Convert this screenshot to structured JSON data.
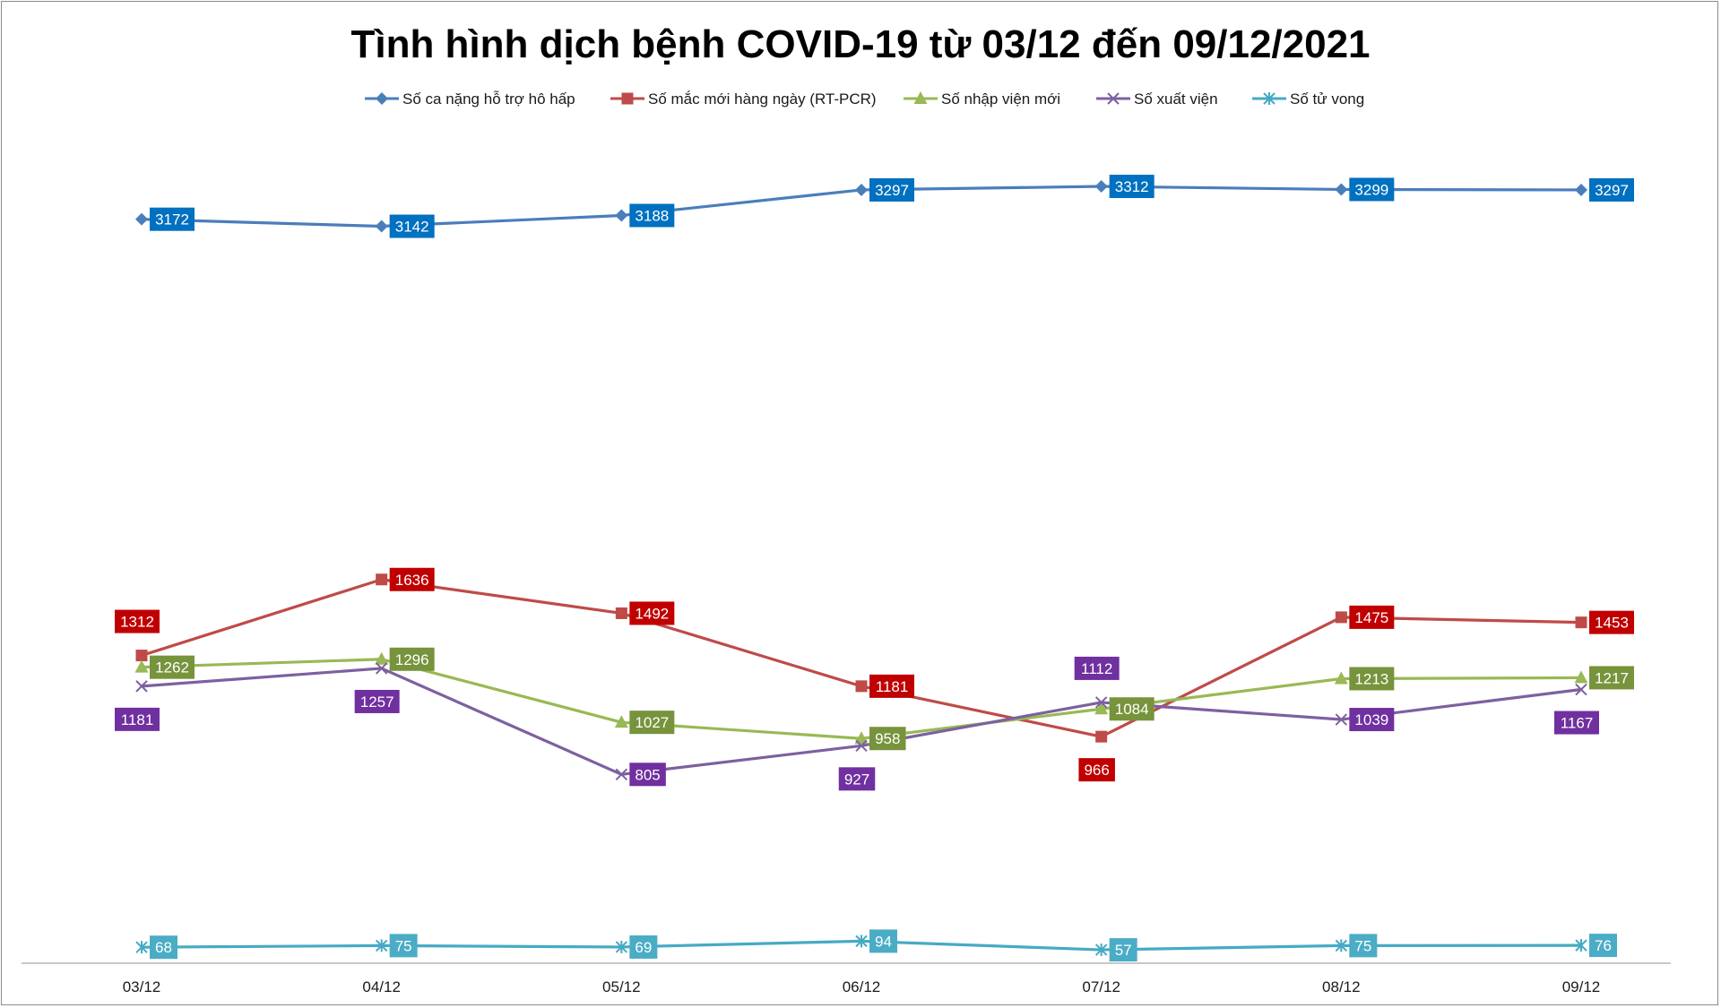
{
  "chart_data": {
    "type": "line",
    "title": "Tình hình dịch bệnh COVID-19 từ 03/12 đến 09/12/2021",
    "xlabel": "",
    "ylabel": "",
    "categories": [
      "03/12",
      "04/12",
      "05/12",
      "06/12",
      "07/12",
      "08/12",
      "09/12"
    ],
    "ylim": [
      0,
      3400
    ],
    "grid": false,
    "legend_position": "top",
    "series": [
      {
        "name": "Số ca nặng hỗ trợ hô hấp",
        "marker": "diamond",
        "line_color": "#4a7ebb",
        "label_color": "#0070c0",
        "values": [
          3172,
          3142,
          3188,
          3297,
          3312,
          3299,
          3297
        ]
      },
      {
        "name": "Số mắc mới hàng ngày (RT-PCR)",
        "marker": "square",
        "line_color": "#be4b48",
        "label_color": "#c00000",
        "values": [
          1312,
          1636,
          1492,
          1181,
          966,
          1475,
          1453
        ]
      },
      {
        "name": "Số nhập viện mới",
        "marker": "triangle",
        "line_color": "#98b954",
        "label_color": "#77933c",
        "values": [
          1262,
          1296,
          1027,
          958,
          1084,
          1213,
          1217
        ]
      },
      {
        "name": "Số xuất viện",
        "marker": "x",
        "line_color": "#7d60a0",
        "label_color": "#7030a0",
        "values": [
          1181,
          1257,
          805,
          927,
          1112,
          1039,
          1167
        ]
      },
      {
        "name": "Số tử vong",
        "marker": "star",
        "line_color": "#46aac5",
        "label_color": "#4bacc6",
        "values": [
          68,
          75,
          69,
          94,
          57,
          75,
          76
        ]
      }
    ]
  }
}
